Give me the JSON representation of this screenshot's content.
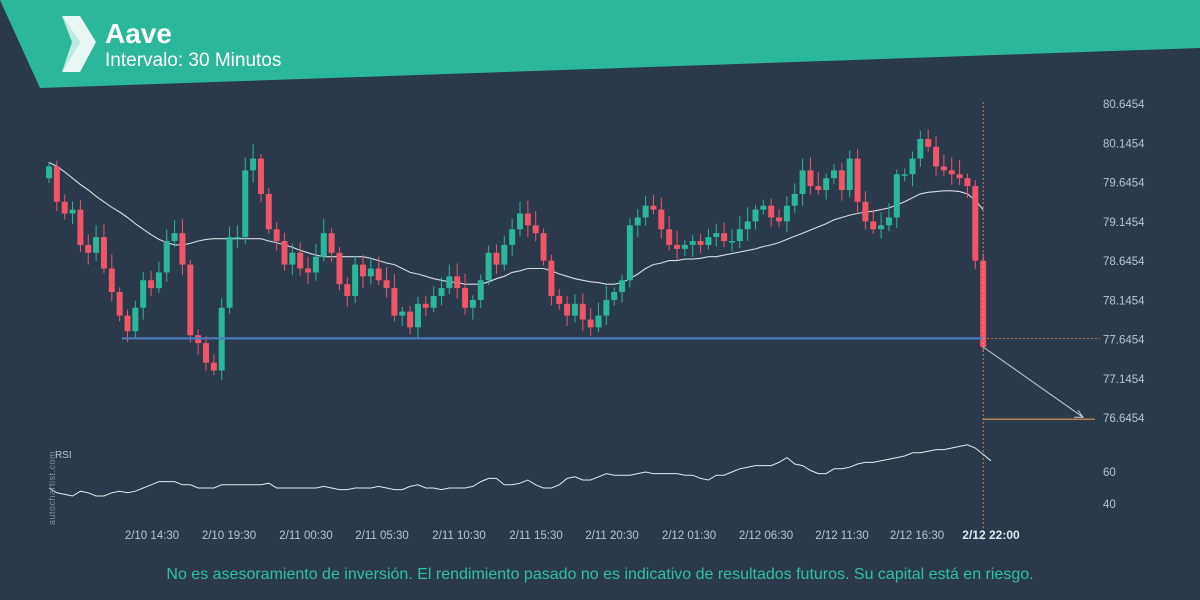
{
  "header": {
    "title": "Aave",
    "subtitle": "Intervalo: 30 Minutos",
    "accent_color": "#2bb89a",
    "logo_icon": "autochartist-logo-icon"
  },
  "watermark": "autochartist.com",
  "disclaimer": "No es asesoramiento de inversión. El rendimiento pasado no es indicativo de resultados futuros. Su capital está en riesgo.",
  "chart_data": {
    "type": "candlestick",
    "price_axis": {
      "ticks": [
        "80.6454",
        "80.1454",
        "79.6454",
        "79.1454",
        "78.6454",
        "78.1454",
        "77.6454",
        "77.1454",
        "76.6454"
      ],
      "range": [
        76.45,
        80.85
      ]
    },
    "time_axis": {
      "ticks": [
        "2/10 14:30",
        "2/10 19:30",
        "2/11 00:30",
        "2/11 05:30",
        "2/11 10:30",
        "2/11 15:30",
        "2/11 20:30",
        "2/12 01:30",
        "2/12 06:30",
        "2/12 11:30",
        "2/12 16:30",
        "2/12 22:00"
      ]
    },
    "colors": {
      "up": "#2bb89a",
      "down": "#f0556a",
      "support": "#4a7fc1",
      "target": "#e8965a",
      "ma": "#d8dde2",
      "rsi": "#e6eaee"
    },
    "closes": [
      79.85,
      79.4,
      79.25,
      79.3,
      78.85,
      78.75,
      78.95,
      78.55,
      78.25,
      77.95,
      77.75,
      78.05,
      78.4,
      78.3,
      78.5,
      78.9,
      79.0,
      78.6,
      77.7,
      77.6,
      77.35,
      77.25,
      78.05,
      78.95,
      78.95,
      79.8,
      79.95,
      79.5,
      79.05,
      78.9,
      78.6,
      78.75,
      78.55,
      78.5,
      78.7,
      79.0,
      78.75,
      78.35,
      78.2,
      78.6,
      78.45,
      78.55,
      78.4,
      78.3,
      77.95,
      78.0,
      77.8,
      78.1,
      78.05,
      78.2,
      78.3,
      78.45,
      78.3,
      78.05,
      78.15,
      78.4,
      78.75,
      78.6,
      78.85,
      79.05,
      79.25,
      79.1,
      79.0,
      78.65,
      78.2,
      78.1,
      77.95,
      78.1,
      77.9,
      77.8,
      77.95,
      78.15,
      78.25,
      78.4,
      79.1,
      79.2,
      79.35,
      79.3,
      79.05,
      78.85,
      78.8,
      78.85,
      78.9,
      78.85,
      78.95,
      79.0,
      78.9,
      78.9,
      79.05,
      79.15,
      79.3,
      79.35,
      79.2,
      79.15,
      79.35,
      79.5,
      79.8,
      79.6,
      79.55,
      79.7,
      79.8,
      79.55,
      79.95,
      79.4,
      79.15,
      79.05,
      79.1,
      79.2,
      79.75,
      79.75,
      79.95,
      80.2,
      80.1,
      79.85,
      79.8,
      79.75,
      79.7,
      79.6,
      78.65,
      77.55
    ],
    "opens": [
      79.7,
      79.85,
      79.4,
      79.25,
      79.3,
      78.85,
      78.75,
      78.95,
      78.55,
      78.25,
      77.95,
      77.75,
      78.05,
      78.4,
      78.3,
      78.5,
      78.9,
      79.0,
      78.6,
      77.7,
      77.6,
      77.35,
      77.25,
      78.05,
      78.95,
      78.95,
      79.8,
      79.95,
      79.5,
      79.05,
      78.9,
      78.6,
      78.75,
      78.55,
      78.5,
      78.7,
      79.0,
      78.75,
      78.35,
      78.2,
      78.6,
      78.45,
      78.55,
      78.4,
      78.3,
      77.95,
      78.0,
      77.8,
      78.1,
      78.05,
      78.2,
      78.3,
      78.45,
      78.3,
      78.05,
      78.15,
      78.4,
      78.75,
      78.6,
      78.85,
      79.05,
      79.25,
      79.1,
      79.0,
      78.65,
      78.2,
      78.1,
      77.95,
      78.1,
      77.9,
      77.8,
      77.95,
      78.15,
      78.25,
      78.4,
      79.1,
      79.2,
      79.35,
      79.3,
      79.05,
      78.85,
      78.8,
      78.85,
      78.9,
      78.85,
      78.95,
      79.0,
      78.9,
      78.9,
      79.05,
      79.15,
      79.3,
      79.35,
      79.2,
      79.15,
      79.35,
      79.5,
      79.8,
      79.6,
      79.55,
      79.7,
      79.8,
      79.55,
      79.95,
      79.4,
      79.15,
      79.05,
      79.1,
      79.2,
      79.75,
      79.75,
      79.95,
      80.2,
      80.1,
      79.85,
      79.8,
      79.75,
      79.7,
      79.6,
      78.65
    ],
    "ma": [
      79.9,
      79.85,
      79.78,
      79.7,
      79.62,
      79.55,
      79.47,
      79.4,
      79.33,
      79.27,
      79.2,
      79.12,
      79.05,
      78.98,
      78.92,
      78.88,
      78.85,
      78.85,
      78.87,
      78.9,
      78.92,
      78.93,
      78.93,
      78.93,
      78.93,
      78.93,
      78.93,
      78.93,
      78.9,
      78.88,
      78.85,
      78.82,
      78.78,
      78.75,
      78.72,
      78.7,
      78.7,
      78.7,
      78.7,
      78.7,
      78.7,
      78.68,
      78.65,
      78.62,
      78.6,
      78.55,
      78.5,
      78.48,
      78.45,
      78.42,
      78.4,
      78.38,
      78.37,
      78.35,
      78.35,
      78.35,
      78.38,
      78.42,
      78.45,
      78.5,
      78.52,
      78.55,
      78.55,
      78.55,
      78.52,
      78.48,
      78.45,
      78.42,
      78.4,
      78.38,
      78.37,
      78.35,
      78.35,
      78.37,
      78.42,
      78.48,
      78.55,
      78.6,
      78.62,
      78.65,
      78.65,
      78.67,
      78.67,
      78.68,
      78.7,
      78.7,
      78.72,
      78.74,
      78.76,
      78.78,
      78.8,
      78.83,
      78.85,
      78.88,
      78.92,
      78.96,
      79.0,
      79.04,
      79.08,
      79.12,
      79.17,
      79.2,
      79.23,
      79.25,
      79.27,
      79.28,
      79.3,
      79.32,
      79.36,
      79.4,
      79.45,
      79.5,
      79.52,
      79.53,
      79.54,
      79.54,
      79.53,
      79.5,
      79.42,
      79.3
    ],
    "rsi": [
      50,
      47,
      46,
      45,
      48,
      47,
      45,
      45,
      47,
      48,
      47,
      48,
      50,
      52,
      54,
      54,
      54,
      52,
      52,
      50,
      50,
      50,
      52,
      52,
      52,
      52,
      52,
      52,
      53,
      50,
      50,
      50,
      50,
      50,
      50,
      51,
      50,
      49,
      49,
      50,
      50,
      50,
      51,
      50,
      49,
      49,
      51,
      52,
      50,
      50,
      49,
      50,
      50,
      50,
      51,
      54,
      56,
      56,
      52,
      52,
      53,
      55,
      52,
      50,
      50,
      52,
      56,
      57,
      55,
      55,
      57,
      59,
      58,
      58,
      58,
      59,
      60,
      59,
      59,
      59,
      59,
      58,
      58,
      56,
      55,
      58,
      58,
      60,
      62,
      63,
      64,
      64,
      64,
      66,
      69,
      65,
      64,
      61,
      59,
      59,
      62,
      62,
      63,
      65,
      66,
      66,
      67,
      68,
      69,
      70,
      72,
      72,
      73,
      74,
      74,
      75,
      76,
      77,
      75,
      71,
      67
    ],
    "rsi_ticks": [
      "60",
      "40"
    ],
    "rsi_label": "RSI",
    "support_level": 77.66,
    "target_level": 76.63
  }
}
